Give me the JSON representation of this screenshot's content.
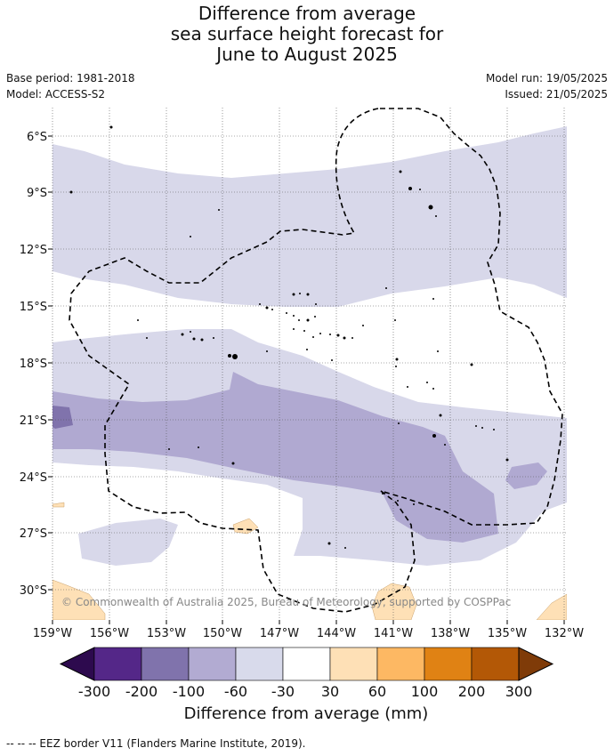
{
  "title": {
    "line1": "Difference from average",
    "line2": "sea surface height forecast for",
    "line3": "June to August 2025"
  },
  "meta": {
    "base_period": "Base period: 1981-2018",
    "model": "Model: ACCESS-S2",
    "model_run": "Model run: 19/05/2025",
    "issued": "Issued: 21/05/2025"
  },
  "map": {
    "lat_ticks": [
      "6°S",
      "9°S",
      "12°S",
      "15°S",
      "18°S",
      "21°S",
      "24°S",
      "27°S",
      "30°S"
    ],
    "lon_ticks": [
      "159°W",
      "156°W",
      "153°W",
      "150°W",
      "147°W",
      "144°W",
      "141°W",
      "138°W",
      "135°W",
      "132°W"
    ],
    "copyright": "© Commonwealth of Australia 2025, Bureau of Meteorology, supported by COSPPac",
    "colors": {
      "neg_30_60": "#d8d8ea",
      "neg_60_100": "#b0a9d1",
      "pos_30_60": "#fee0b6",
      "land": "#000000",
      "eez": "#000000",
      "grid": "#555555"
    }
  },
  "colorbar": {
    "labels": [
      "-300",
      "-200",
      "-100",
      "-60",
      "-30",
      "30",
      "60",
      "100",
      "200",
      "300"
    ],
    "colors": [
      "#2d0a4e",
      "#542788",
      "#8073ac",
      "#b2abd2",
      "#d8daeb",
      "#ffffff",
      "#fee0b6",
      "#fdb863",
      "#e08214",
      "#b35806",
      "#7f3b08"
    ],
    "title": "Difference from average (mm)"
  },
  "footnote": "--  --  -- EEZ border V11 (Flanders Marine Institute, 2019)."
}
